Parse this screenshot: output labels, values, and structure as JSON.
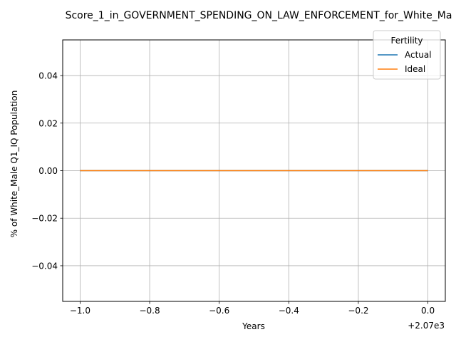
{
  "chart_data": {
    "type": "line",
    "title": "Score_1_in_GOVERNMENT_SPENDING_ON_LAW_ENFORCEMENT_for_White_Ma",
    "xlabel": "Years",
    "ylabel": "% of White_Male Q1_IQ Population",
    "x_offset_label": "+2.07e3",
    "xlim": [
      -1.05,
      0.05
    ],
    "ylim": [
      -0.055,
      0.055
    ],
    "x_ticks": [
      -1.0,
      -0.8,
      -0.6,
      -0.4,
      -0.2,
      0.0
    ],
    "x_tick_labels": [
      "−1.0",
      "−0.8",
      "−0.6",
      "−0.4",
      "−0.2",
      "0.0"
    ],
    "y_ticks": [
      -0.04,
      -0.02,
      0.0,
      0.02,
      0.04
    ],
    "y_tick_labels": [
      "−0.04",
      "−0.02",
      "0.00",
      "0.02",
      "0.04"
    ],
    "grid": true,
    "legend": {
      "title": "Fertility",
      "placement": "top-right"
    },
    "series": [
      {
        "name": "Actual",
        "color": "#1f77b4",
        "x": [
          -1.0,
          0.0
        ],
        "y": [
          0,
          0
        ]
      },
      {
        "name": "Ideal",
        "color": "#ff7f0e",
        "x": [
          -1.0,
          0.0
        ],
        "y": [
          0,
          0
        ]
      }
    ]
  }
}
